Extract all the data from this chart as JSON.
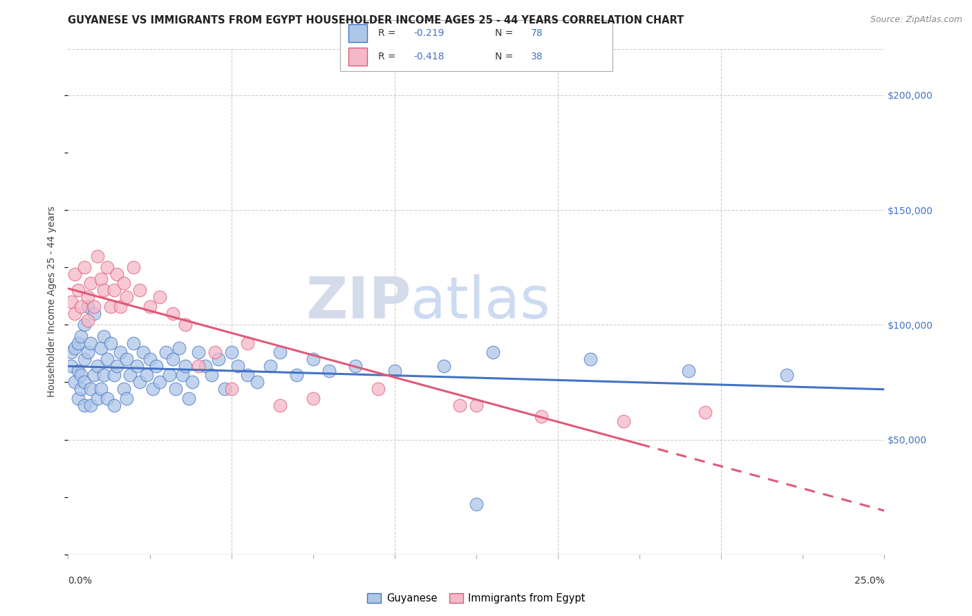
{
  "title": "GUYANESE VS IMMIGRANTS FROM EGYPT HOUSEHOLDER INCOME AGES 25 - 44 YEARS CORRELATION CHART",
  "source": "Source: ZipAtlas.com",
  "ylabel": "Householder Income Ages 25 - 44 years",
  "xlim": [
    0.0,
    0.25
  ],
  "ylim": [
    0,
    220000
  ],
  "yticks": [
    50000,
    100000,
    150000,
    200000
  ],
  "ytick_labels": [
    "$50,000",
    "$100,000",
    "$150,000",
    "$200,000"
  ],
  "color_blue": "#aec6e8",
  "color_pink": "#f5b8c8",
  "line_blue": "#4472c4",
  "line_pink": "#e05878",
  "watermark_zip": "ZIP",
  "watermark_atlas": "atlas",
  "guyanese_x": [
    0.001,
    0.001,
    0.002,
    0.002,
    0.003,
    0.003,
    0.003,
    0.004,
    0.004,
    0.004,
    0.005,
    0.005,
    0.005,
    0.005,
    0.006,
    0.006,
    0.007,
    0.007,
    0.007,
    0.008,
    0.008,
    0.009,
    0.009,
    0.01,
    0.01,
    0.011,
    0.011,
    0.012,
    0.012,
    0.013,
    0.014,
    0.014,
    0.015,
    0.016,
    0.017,
    0.018,
    0.018,
    0.019,
    0.02,
    0.021,
    0.022,
    0.023,
    0.024,
    0.025,
    0.026,
    0.027,
    0.028,
    0.03,
    0.031,
    0.032,
    0.033,
    0.034,
    0.035,
    0.036,
    0.037,
    0.038,
    0.04,
    0.042,
    0.044,
    0.046,
    0.048,
    0.05,
    0.052,
    0.055,
    0.058,
    0.062,
    0.065,
    0.07,
    0.075,
    0.08,
    0.088,
    0.1,
    0.115,
    0.13,
    0.16,
    0.19,
    0.22,
    0.125
  ],
  "guyanese_y": [
    88000,
    82000,
    90000,
    75000,
    92000,
    80000,
    68000,
    95000,
    78000,
    72000,
    100000,
    85000,
    75000,
    65000,
    108000,
    88000,
    92000,
    72000,
    65000,
    78000,
    105000,
    82000,
    68000,
    90000,
    72000,
    95000,
    78000,
    85000,
    68000,
    92000,
    78000,
    65000,
    82000,
    88000,
    72000,
    85000,
    68000,
    78000,
    92000,
    82000,
    75000,
    88000,
    78000,
    85000,
    72000,
    82000,
    75000,
    88000,
    78000,
    85000,
    72000,
    90000,
    78000,
    82000,
    68000,
    75000,
    88000,
    82000,
    78000,
    85000,
    72000,
    88000,
    82000,
    78000,
    75000,
    82000,
    88000,
    78000,
    85000,
    80000,
    82000,
    80000,
    82000,
    88000,
    85000,
    80000,
    78000,
    22000
  ],
  "egypt_x": [
    0.001,
    0.002,
    0.002,
    0.003,
    0.004,
    0.005,
    0.006,
    0.006,
    0.007,
    0.008,
    0.009,
    0.01,
    0.011,
    0.012,
    0.013,
    0.014,
    0.015,
    0.016,
    0.017,
    0.018,
    0.02,
    0.022,
    0.025,
    0.028,
    0.032,
    0.036,
    0.04,
    0.045,
    0.05,
    0.055,
    0.065,
    0.075,
    0.095,
    0.12,
    0.145,
    0.17,
    0.195,
    0.125
  ],
  "egypt_y": [
    110000,
    122000,
    105000,
    115000,
    108000,
    125000,
    112000,
    102000,
    118000,
    108000,
    130000,
    120000,
    115000,
    125000,
    108000,
    115000,
    122000,
    108000,
    118000,
    112000,
    125000,
    115000,
    108000,
    112000,
    105000,
    100000,
    82000,
    88000,
    72000,
    92000,
    65000,
    68000,
    72000,
    65000,
    60000,
    58000,
    62000,
    65000
  ]
}
